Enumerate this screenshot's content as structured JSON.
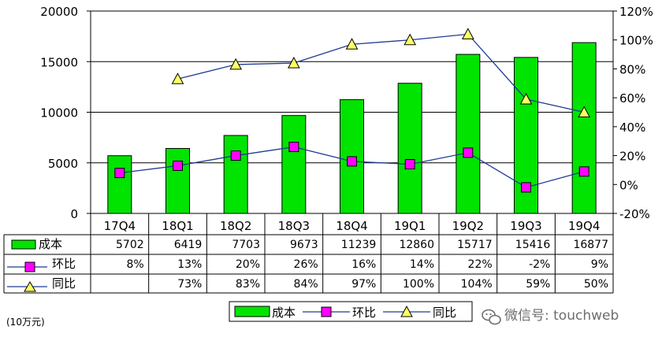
{
  "chart_data": {
    "type": "bar",
    "categories": [
      "17Q4",
      "18Q1",
      "18Q2",
      "18Q3",
      "18Q4",
      "19Q1",
      "19Q2",
      "19Q3",
      "19Q4"
    ],
    "series": [
      {
        "name": "成本",
        "type": "bar",
        "axis": "left",
        "values": [
          5702,
          6419,
          7703,
          9673,
          11239,
          12860,
          15717,
          15416,
          16877
        ],
        "labels": [
          "5702",
          "6419",
          "7703",
          "9673",
          "11239",
          "12860",
          "15717",
          "15416",
          "16877"
        ],
        "color": "#00e400"
      },
      {
        "name": "环比",
        "type": "line",
        "axis": "right",
        "marker": "square",
        "values": [
          8,
          13,
          20,
          26,
          16,
          14,
          22,
          -2,
          9
        ],
        "labels": [
          "8%",
          "13%",
          "20%",
          "26%",
          "16%",
          "14%",
          "22%",
          "-2%",
          "9%"
        ],
        "color": "#ff00ff",
        "line_color": "#1f3a93"
      },
      {
        "name": "同比",
        "type": "line",
        "axis": "right",
        "marker": "triangle",
        "values": [
          null,
          73,
          83,
          84,
          97,
          100,
          104,
          59,
          50
        ],
        "labels": [
          "",
          "73%",
          "83%",
          "84%",
          "97%",
          "100%",
          "104%",
          "59%",
          "50%"
        ],
        "color": "#ffff66",
        "line_color": "#1f3a93"
      }
    ],
    "y_left": {
      "ticks": [
        "0",
        "5000",
        "10000",
        "15000",
        "20000"
      ],
      "ylim": [
        0,
        20000
      ]
    },
    "y_right": {
      "ticks": [
        "-20%",
        "0%",
        "20%",
        "40%",
        "60%",
        "80%",
        "100%",
        "120%"
      ],
      "ylim": [
        -20,
        120
      ]
    },
    "unit_label": "(10万元)",
    "legend": {
      "placement": "bottom-center",
      "items": [
        "成本",
        "环比",
        "同比"
      ]
    },
    "data_table": true,
    "grid": "horizontal"
  },
  "watermark": {
    "text": "微信号: touchweb",
    "icon": "wechat-icon"
  }
}
